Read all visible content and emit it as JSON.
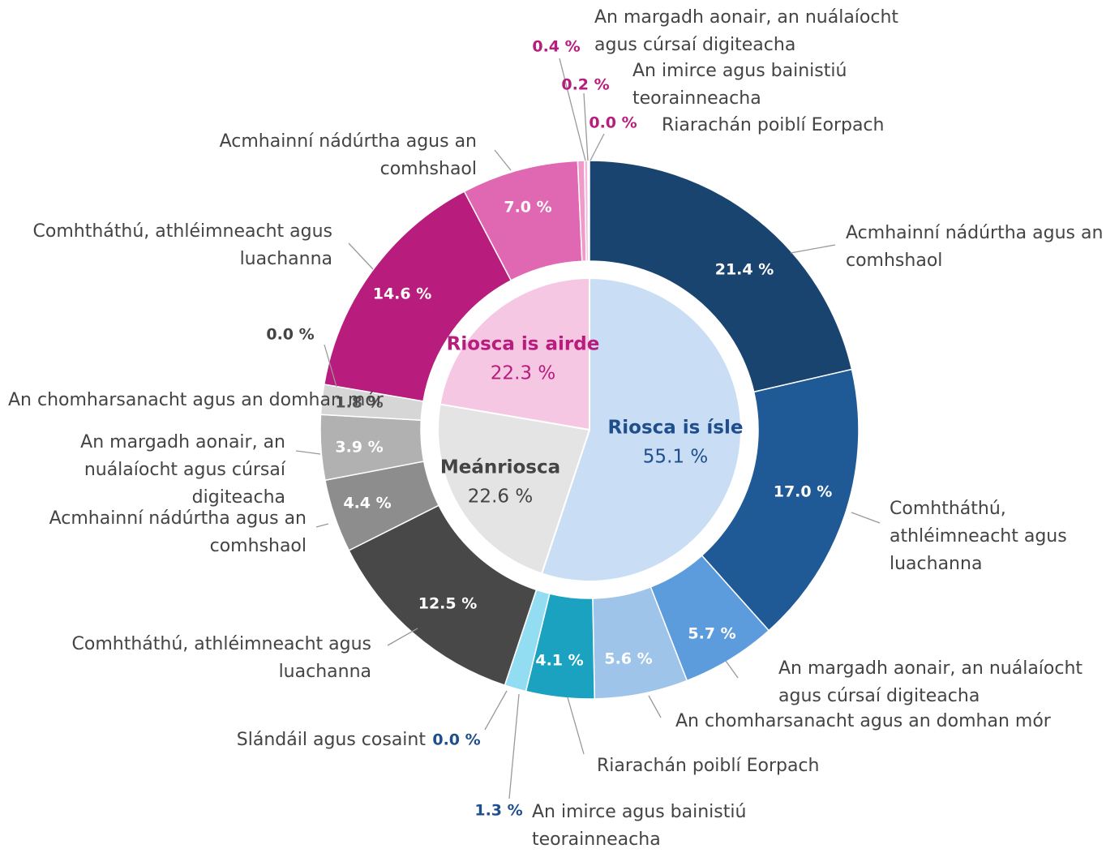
{
  "chart_data": {
    "type": "sunburst",
    "groups": [
      {
        "name": "Riosca is ísle",
        "value": 55.1,
        "value_label": "55.1 %",
        "color": "#c9def4",
        "label_color": "#1f4e8c",
        "children": [
          {
            "name": "Acmhainní nádúrtha agus an comhshaol",
            "value": 21.4,
            "value_label": "21.4 %",
            "color": "#1a4470"
          },
          {
            "name": "Comhtháthú, athléimneacht agus luachanna",
            "value": 17.0,
            "value_label": "17.0 %",
            "color": "#1f5a96"
          },
          {
            "name": "An margadh aonair, an nuálaíocht agus cúrsaí digiteacha",
            "value": 5.7,
            "value_label": "5.7 %",
            "color": "#5c9cdc"
          },
          {
            "name": "An chomharsanacht agus an domhan mór",
            "value": 5.6,
            "value_label": "5.6 %",
            "color": "#9fc4ea"
          },
          {
            "name": "Riarachán poiblí Eorpach",
            "value": 4.1,
            "value_label": "4.1 %",
            "color": "#1ba2c0"
          },
          {
            "name": "An imirce agus bainistiú teorainneacha",
            "value": 1.3,
            "value_label": "1.3 %",
            "color": "#92ddf1"
          },
          {
            "name": "Slándáil agus cosaint",
            "value": 0.0,
            "value_label": "0.0 %",
            "color": "#0d3a6a"
          }
        ]
      },
      {
        "name": "Meánriosca",
        "value": 22.6,
        "value_label": "22.6 %",
        "color": "#e4e4e4",
        "label_color": "#444444",
        "children": [
          {
            "name": "Comhtháthú, athléimneacht agus luachanna",
            "value": 12.5,
            "value_label": "12.5 %",
            "color": "#484848"
          },
          {
            "name": "Acmhainní nádúrtha agus an comhshaol",
            "value": 4.4,
            "value_label": "4.4 %",
            "color": "#8d8d8d"
          },
          {
            "name": "An margadh aonair, an nuálaíocht agus cúrsaí digiteacha",
            "value": 3.9,
            "value_label": "3.9 %",
            "color": "#b1b1b1"
          },
          {
            "name": "An chomharsanacht agus an domhan mór",
            "value": 1.8,
            "value_label": "1.8 %",
            "color": "#d6d6d6"
          },
          {
            "name": null,
            "value": 0.0,
            "value_label": "0.0 %",
            "color": "#333333"
          }
        ]
      },
      {
        "name": "Riosca is airde",
        "value": 22.3,
        "value_label": "22.3 %",
        "color": "#f5c7e3",
        "label_color": "#b81c7c",
        "children": [
          {
            "name": "Comhtháthú, athléimneacht agus luachanna",
            "value": 14.6,
            "value_label": "14.6 %",
            "color": "#b81c7c"
          },
          {
            "name": "Acmhainní nádúrtha agus an comhshaol",
            "value": 7.0,
            "value_label": "7.0 %",
            "color": "#e068b3"
          },
          {
            "name": "An margadh aonair, an nuálaíocht agus cúrsaí digiteacha",
            "value": 0.4,
            "value_label": "0.4 %",
            "color": "#ef9ac9"
          },
          {
            "name": "An imirce agus bainistiú teorainneacha",
            "value": 0.2,
            "value_label": "0.2 %",
            "color": "#f5b8dc"
          },
          {
            "name": "Riarachán poiblí Eorpach",
            "value": 0.0,
            "value_label": "0.0 %",
            "color": "#a0106a"
          }
        ]
      }
    ]
  }
}
